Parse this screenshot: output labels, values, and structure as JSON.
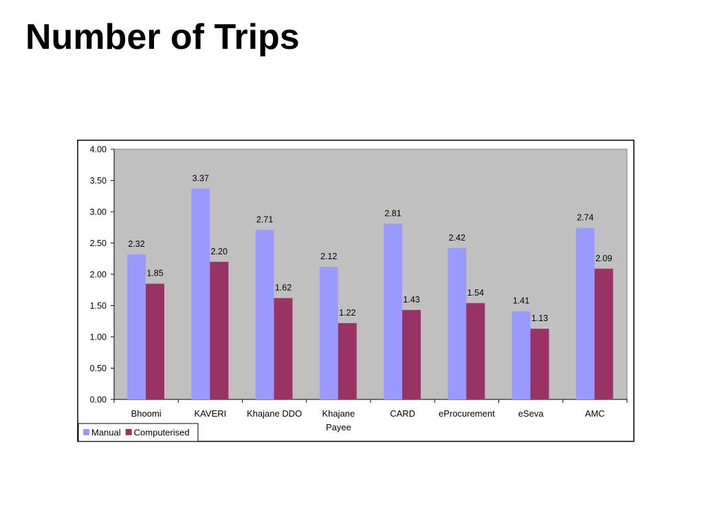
{
  "slide": {
    "title": "Number of Trips"
  },
  "chart_data": {
    "type": "bar",
    "title": "",
    "xlabel": "",
    "ylabel": "",
    "categories": [
      [
        "Bhoomi"
      ],
      [
        "KAVERI"
      ],
      [
        "Khajane DDO"
      ],
      [
        "Khajane",
        "Payee"
      ],
      [
        "CARD"
      ],
      [
        "eProcurement"
      ],
      [
        "eSeva"
      ],
      [
        "AMC"
      ]
    ],
    "series": [
      {
        "name": "Manual",
        "color": "#9999ff",
        "values": [
          2.32,
          3.37,
          2.71,
          2.12,
          2.81,
          2.42,
          1.41,
          2.74
        ],
        "labels": [
          "2.32",
          "3.37",
          "2.71",
          "2.12",
          "2.81",
          "2.42",
          "1.41",
          "2.74"
        ]
      },
      {
        "name": "Computerised",
        "color": "#993366",
        "values": [
          1.85,
          2.2,
          1.62,
          1.22,
          1.43,
          1.54,
          1.13,
          2.09
        ],
        "labels": [
          "1.85",
          "2.20",
          "1.62",
          "1.22",
          "1.43",
          "1.54",
          "1.13",
          "2.09"
        ]
      }
    ],
    "ylim": [
      0,
      4
    ],
    "yticks": [
      0,
      0.5,
      1,
      1.5,
      2,
      2.5,
      3,
      3.5,
      4
    ],
    "ytick_labels": [
      "0.00",
      "0.50",
      "1.00",
      "1.50",
      "2.00",
      "2.50",
      "3.00",
      "3.50",
      "4.00"
    ],
    "grid": false,
    "plot_background": "#c0c0c0",
    "legend_position": "bottom-left"
  }
}
